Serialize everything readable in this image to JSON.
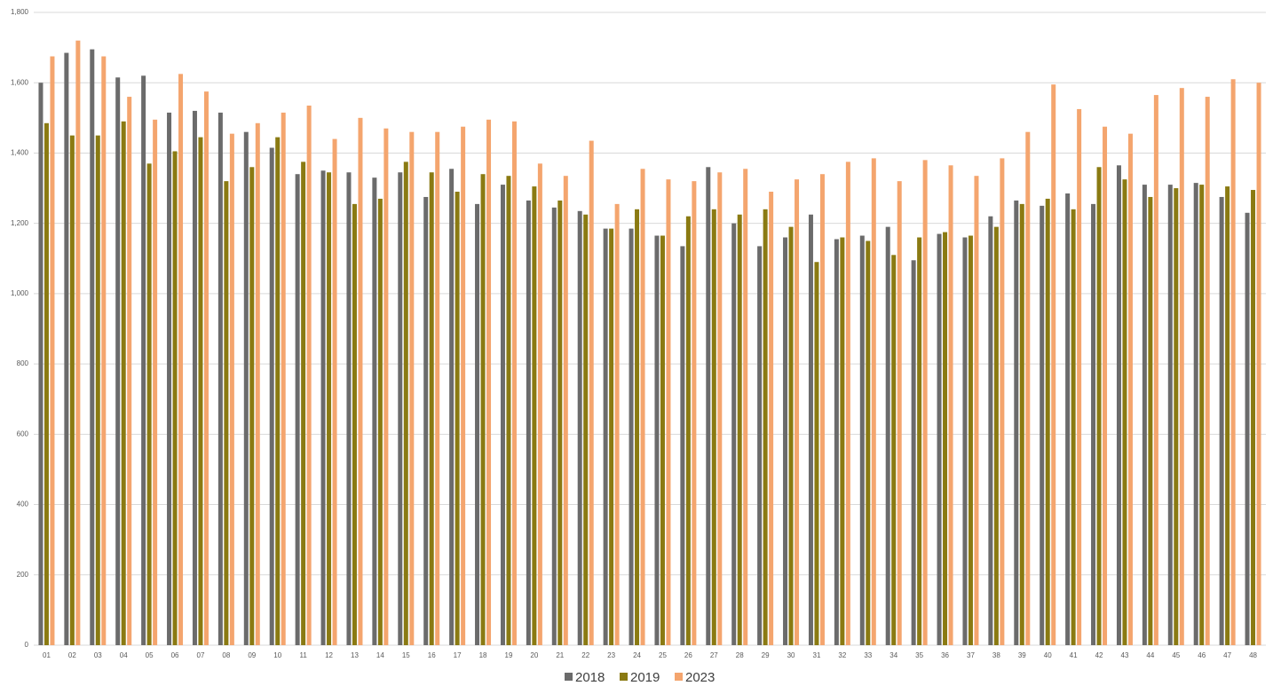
{
  "chart_data": {
    "type": "bar",
    "categories": [
      "01",
      "02",
      "03",
      "04",
      "05",
      "06",
      "07",
      "08",
      "09",
      "10",
      "11",
      "12",
      "13",
      "14",
      "15",
      "16",
      "17",
      "18",
      "19",
      "20",
      "21",
      "22",
      "23",
      "24",
      "25",
      "26",
      "27",
      "28",
      "29",
      "30",
      "31",
      "32",
      "33",
      "34",
      "35",
      "36",
      "37",
      "38",
      "39",
      "40",
      "41",
      "42",
      "43",
      "44",
      "45",
      "46",
      "47",
      "48"
    ],
    "series": [
      {
        "name": "2018",
        "color": "#6b6b6b",
        "values": [
          1600,
          1685,
          1695,
          1615,
          1620,
          1515,
          1520,
          1515,
          1460,
          1415,
          1340,
          1350,
          1345,
          1330,
          1345,
          1275,
          1355,
          1255,
          1310,
          1265,
          1245,
          1235,
          1185,
          1185,
          1165,
          1135,
          1360,
          1200,
          1135,
          1160,
          1225,
          1155,
          1165,
          1190,
          1095,
          1170,
          1160,
          1220,
          1265,
          1250,
          1285,
          1255,
          1365,
          1310,
          1310,
          1315,
          1275,
          1230
        ]
      },
      {
        "name": "2019",
        "color": "#8a7a12",
        "values": [
          1485,
          1450,
          1450,
          1490,
          1370,
          1405,
          1445,
          1320,
          1360,
          1445,
          1375,
          1345,
          1255,
          1270,
          1375,
          1345,
          1290,
          1340,
          1335,
          1305,
          1265,
          1225,
          1185,
          1240,
          1165,
          1220,
          1240,
          1225,
          1240,
          1190,
          1090,
          1160,
          1150,
          1110,
          1160,
          1175,
          1165,
          1190,
          1255,
          1270,
          1240,
          1360,
          1325,
          1275,
          1300,
          1310,
          1305,
          1295
        ]
      },
      {
        "name": "2023",
        "color": "#f4a56e",
        "values": [
          1675,
          1720,
          1675,
          1560,
          1495,
          1625,
          1575,
          1455,
          1485,
          1515,
          1535,
          1440,
          1500,
          1470,
          1460,
          1460,
          1475,
          1495,
          1490,
          1370,
          1335,
          1435,
          1255,
          1355,
          1325,
          1320,
          1345,
          1355,
          1290,
          1325,
          1340,
          1375,
          1385,
          1320,
          1380,
          1365,
          1335,
          1385,
          1460,
          1595,
          1525,
          1475,
          1455,
          1565,
          1585,
          1560,
          1610,
          1600
        ]
      }
    ],
    "ylim": [
      0,
      1800
    ],
    "yticks": [
      0,
      200,
      400,
      600,
      800,
      {
        "value": 1000,
        "label": "1,000"
      },
      {
        "value": 1200,
        "label": "1,200"
      },
      {
        "value": 1400,
        "label": "1,400"
      },
      {
        "value": 1600,
        "label": "1,600"
      },
      {
        "value": 1800,
        "label": "1,800"
      }
    ],
    "grid": true
  }
}
